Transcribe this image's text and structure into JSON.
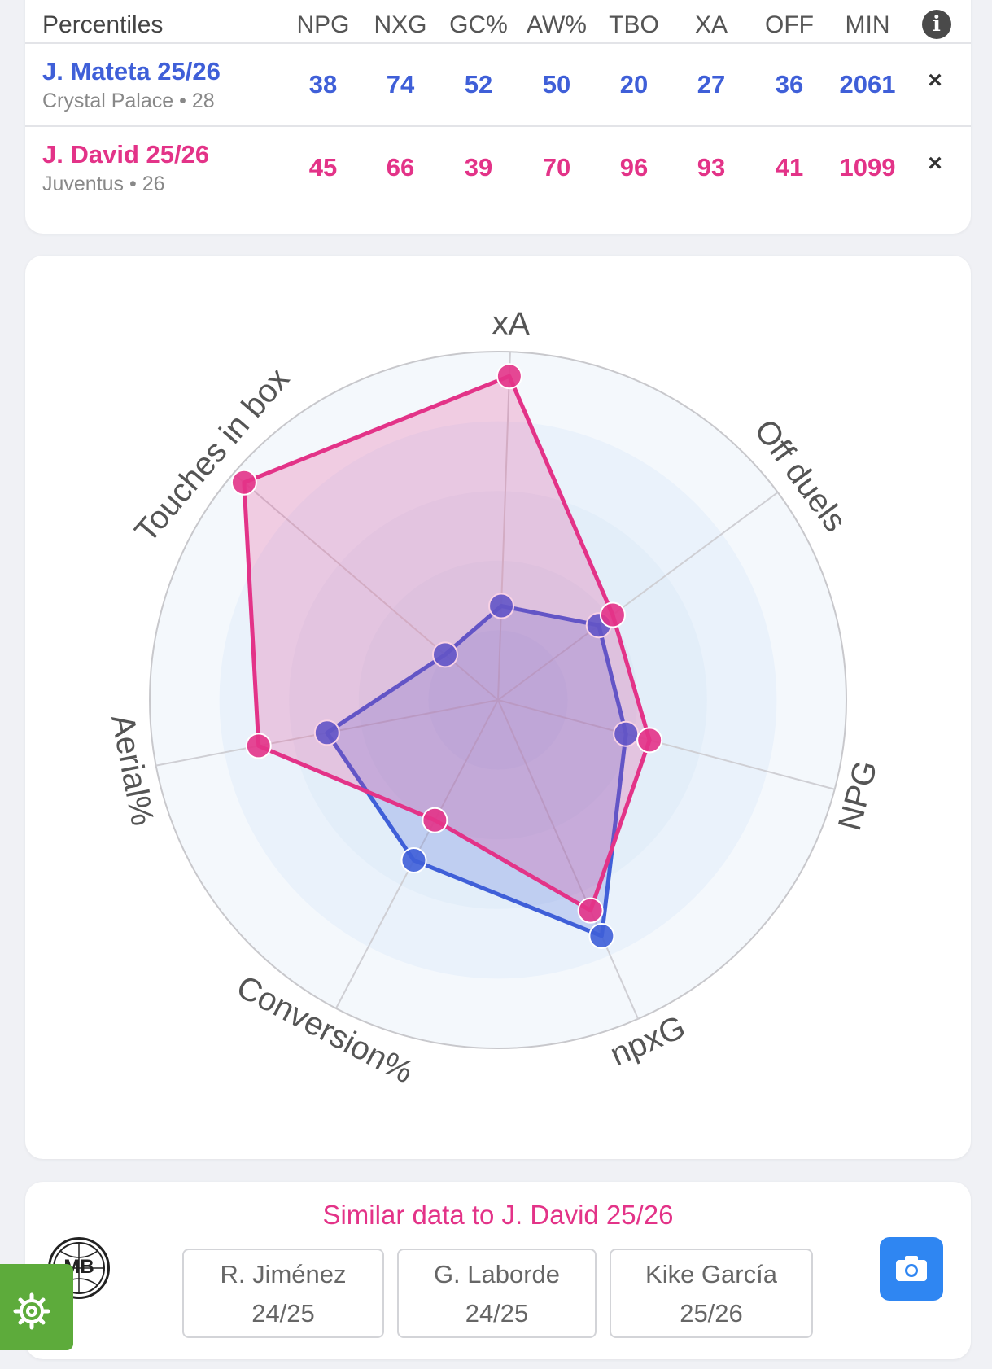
{
  "table": {
    "title": "Percentiles",
    "columns": [
      "NPG",
      "NXG",
      "GC%",
      "AW%",
      "TBO",
      "XA",
      "OFF",
      "MIN"
    ],
    "info_icon": "info-icon",
    "remove_symbol": "×",
    "players": [
      {
        "name": "J. Mateta 25/26",
        "subtitle": "Crystal Palace • 28",
        "values": [
          "38",
          "74",
          "52",
          "50",
          "20",
          "27",
          "36",
          "2061"
        ],
        "color": "#3f5fd8"
      },
      {
        "name": "J. David 25/26",
        "subtitle": "Juventus • 26",
        "values": [
          "45",
          "66",
          "39",
          "70",
          "96",
          "93",
          "41",
          "1099"
        ],
        "color": "#e33388"
      }
    ]
  },
  "chart_data": {
    "type": "radar",
    "axes": [
      "xA",
      "Off duels",
      "NPG",
      "npxG",
      "Conversion%",
      "Aerial%",
      "Touches in box"
    ],
    "range": [
      0,
      100
    ],
    "series": [
      {
        "name": "J. Mateta 25/26",
        "color": "#3f5fd8",
        "values": [
          27,
          36,
          38,
          74,
          52,
          50,
          20
        ]
      },
      {
        "name": "J. David 25/26",
        "color": "#e33388",
        "values": [
          93,
          41,
          45,
          66,
          39,
          70,
          96
        ]
      }
    ]
  },
  "similar": {
    "title": "Similar data to J. David 25/26",
    "logo_text": "MB",
    "items": [
      {
        "name": "R. Jiménez",
        "season": "24/25"
      },
      {
        "name": "G. Laborde",
        "season": "24/25"
      },
      {
        "name": "Kike García",
        "season": "25/26"
      }
    ],
    "camera_icon": "camera-icon",
    "settings_icon": "gear-icon"
  }
}
